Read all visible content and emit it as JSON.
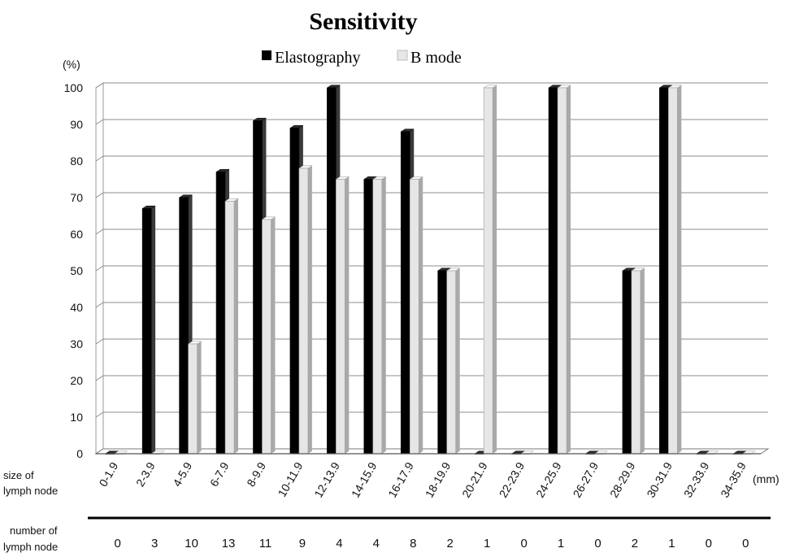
{
  "chart_data": {
    "type": "bar",
    "title": "Sensitivity",
    "y_unit_label": "(%)",
    "x_unit_label": "(mm)",
    "ylim": [
      0,
      100
    ],
    "yticks": [
      0,
      10,
      20,
      30,
      40,
      50,
      60,
      70,
      80,
      90,
      100
    ],
    "grid": true,
    "legend_position": "top-center",
    "categories": [
      "0-1.9",
      "2-3.9",
      "4-5.9",
      "6-7.9",
      "8-9.9",
      "10-11.9",
      "12-13.9",
      "14-15.9",
      "16-17.9",
      "18-19.9",
      "20-21.9",
      "22-23.9",
      "24-25.9",
      "26-27.9",
      "28-29.9",
      "30-31.9",
      "32-33.9",
      "34-35.9"
    ],
    "series": [
      {
        "name": "Elastography",
        "color": "#000000",
        "values": [
          0,
          67,
          70,
          77,
          91,
          89,
          100,
          75,
          88,
          50,
          0,
          0,
          100,
          0,
          50,
          100,
          0,
          0
        ]
      },
      {
        "name": "B mode",
        "color": "#e6e6e6",
        "values": [
          0,
          0,
          30,
          69,
          64,
          78,
          75,
          75,
          75,
          50,
          100,
          0,
          100,
          0,
          50,
          100,
          0,
          0
        ]
      }
    ],
    "row_labels": {
      "size_line1": "size of",
      "size_line2": "lymph node",
      "number_line1": "number of",
      "number_line2": "lymph node"
    },
    "number_of_lymph_node": [
      "0",
      "3",
      "10",
      "13",
      "11",
      "9",
      "4",
      "4",
      "8",
      "2",
      "1",
      "0",
      "1",
      "0",
      "2",
      "1",
      "0",
      "0"
    ]
  }
}
